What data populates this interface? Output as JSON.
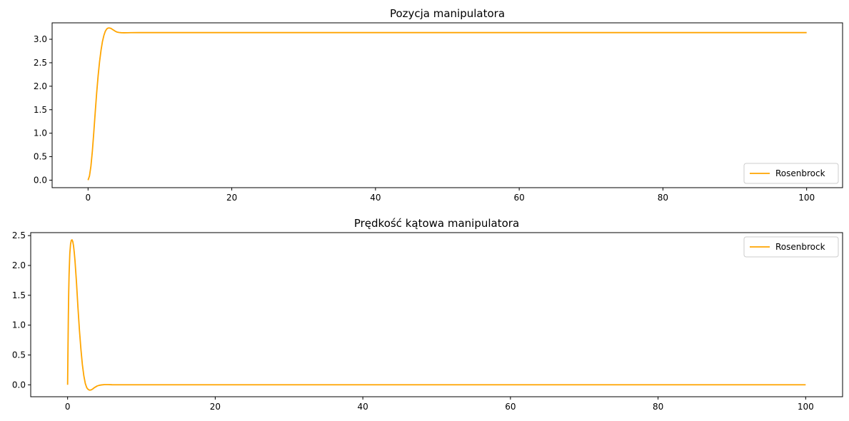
{
  "chart_data": [
    {
      "type": "line",
      "title": "Pozycja manipulatora",
      "xlabel": "",
      "ylabel": "",
      "xlim": [
        -5,
        105
      ],
      "ylim": [
        -0.16,
        3.35
      ],
      "xticks": [
        0,
        20,
        40,
        60,
        80,
        100
      ],
      "xtick_labels": [
        "0",
        "20",
        "40",
        "60",
        "80",
        "100"
      ],
      "yticks": [
        0.0,
        0.5,
        1.0,
        1.5,
        2.0,
        2.5,
        3.0
      ],
      "ytick_labels": [
        "0.0",
        "0.5",
        "1.0",
        "1.5",
        "2.0",
        "2.5",
        "3.0"
      ],
      "grid": false,
      "legend_position": "lower-right",
      "series": [
        {
          "name": "Rosenbrock",
          "color": "#ffa500",
          "x": [
            0,
            0.2,
            0.4,
            0.6,
            0.8,
            1.0,
            1.2,
            1.4,
            1.6,
            1.8,
            2.0,
            2.2,
            2.4,
            2.6,
            2.8,
            3.0,
            3.2,
            3.4,
            3.6,
            3.8,
            4.0,
            4.3,
            4.6,
            5.0,
            5.5,
            6.0,
            7.0,
            8.0,
            10,
            20,
            40,
            60,
            80,
            100
          ],
          "y": [
            0.0,
            0.09,
            0.3,
            0.62,
            1.02,
            1.45,
            1.86,
            2.22,
            2.52,
            2.76,
            2.95,
            3.08,
            3.17,
            3.22,
            3.24,
            3.24,
            3.23,
            3.21,
            3.19,
            3.17,
            3.155,
            3.145,
            3.14,
            3.138,
            3.139,
            3.141,
            3.142,
            3.142,
            3.142,
            3.142,
            3.142,
            3.142,
            3.142,
            3.142
          ]
        }
      ]
    },
    {
      "type": "line",
      "title": "Prędkość kątowa manipulatora",
      "xlabel": "",
      "ylabel": "",
      "xlim": [
        -5,
        105
      ],
      "ylim": [
        -0.2,
        2.55
      ],
      "xticks": [
        0,
        20,
        40,
        60,
        80,
        100
      ],
      "xtick_labels": [
        "0",
        "20",
        "40",
        "60",
        "80",
        "100"
      ],
      "yticks": [
        0.0,
        0.5,
        1.0,
        1.5,
        2.0,
        2.5
      ],
      "ytick_labels": [
        "0.0",
        "0.5",
        "1.0",
        "1.5",
        "2.0",
        "2.5"
      ],
      "grid": false,
      "legend_position": "upper-right",
      "series": [
        {
          "name": "Rosenbrock",
          "color": "#ffa500",
          "x": [
            0,
            0.05,
            0.1,
            0.15,
            0.2,
            0.3,
            0.4,
            0.5,
            0.6,
            0.7,
            0.8,
            0.9,
            1.0,
            1.2,
            1.4,
            1.6,
            1.8,
            2.0,
            2.2,
            2.4,
            2.6,
            2.8,
            3.0,
            3.2,
            3.4,
            3.6,
            3.8,
            4.0,
            4.3,
            4.6,
            5.0,
            5.5,
            6.0,
            7.0,
            8.0,
            10,
            20,
            40,
            60,
            80,
            100
          ],
          "y": [
            0.0,
            0.6,
            1.15,
            1.55,
            1.85,
            2.2,
            2.36,
            2.42,
            2.43,
            2.4,
            2.33,
            2.22,
            2.08,
            1.72,
            1.3,
            0.92,
            0.6,
            0.34,
            0.15,
            0.02,
            -0.05,
            -0.08,
            -0.09,
            -0.085,
            -0.07,
            -0.05,
            -0.035,
            -0.02,
            -0.008,
            -0.002,
            0.003,
            0.003,
            0.001,
            0.0,
            0.0,
            0.0,
            0.0,
            0.0,
            0.0,
            0.0,
            0.0
          ]
        }
      ]
    }
  ]
}
